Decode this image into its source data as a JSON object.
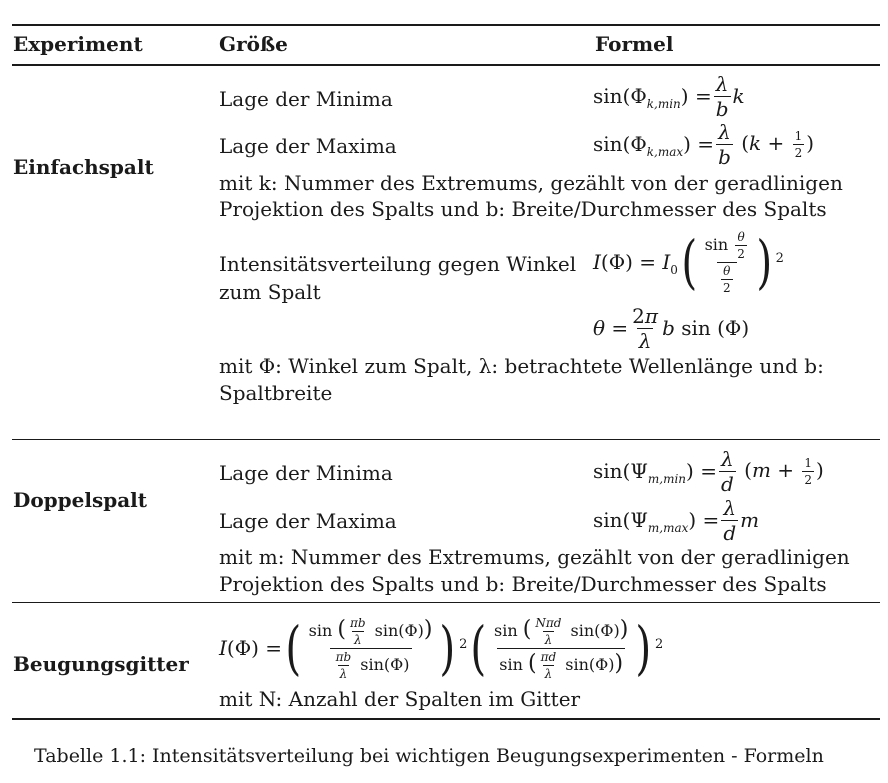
{
  "table": {
    "headers": {
      "experiment": "Experiment",
      "quantity": "Größe",
      "formula": "Formel"
    },
    "einfachspalt": {
      "name": "Einfachspalt",
      "minima_label": "Lage der Minima",
      "maxima_label": "Lage der Maxima",
      "note1_line1": "mit k: Nummer des Extremums, gezählt von der geradlinigen",
      "note1_line2": "Projektion des Spalts und b: Breite/Durchmesser des Spalts",
      "intensity_label_line1": "Intensitätsverteilung gegen Winkel",
      "intensity_label_line2": "zum Spalt",
      "note2_line1": "mit Φ: Winkel zum Spalt, λ: betrachtete Wellenlänge und b:",
      "note2_line2": "Spaltbreite"
    },
    "doppelspalt": {
      "name": "Doppelspalt",
      "minima_label": "Lage der Minima",
      "maxima_label": "Lage der Maxima",
      "note_line1": "mit m: Nummer des Extremums, gezählt von der geradlinigen",
      "note_line2": "Projektion des Spalts und b: Breite/Durchmesser des Spalts"
    },
    "beugungsgitter": {
      "name": "Beugungsgitter",
      "note": "mit N: Anzahl der Spalten im Gitter"
    }
  },
  "caption": "Tabelle 1.1: Intensitätsverteilung bei wichtigen Beugungsexperimenten - Formeln"
}
